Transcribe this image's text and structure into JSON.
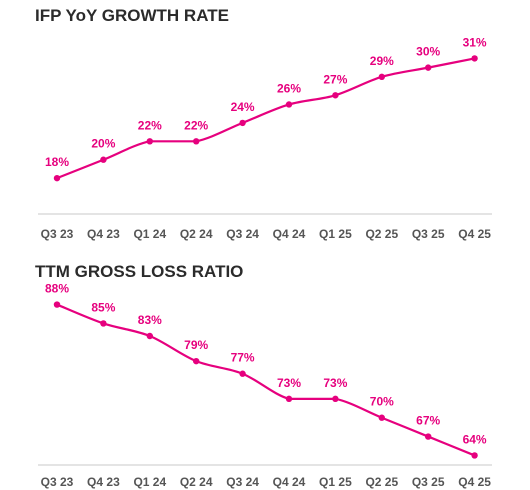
{
  "colors": {
    "series": "#e6007e",
    "axis": "#c8c8c8",
    "tick_text": "#555555",
    "title": "#2b2b2b"
  },
  "chart_data": [
    {
      "type": "line",
      "title": "IFP YoY GROWTH RATE",
      "categories": [
        "Q3 23",
        "Q4 23",
        "Q1 24",
        "Q2 24",
        "Q3 24",
        "Q4 24",
        "Q1 25",
        "Q2 25",
        "Q3 25",
        "Q4 25"
      ],
      "values": [
        18,
        20,
        22,
        22,
        24,
        26,
        27,
        29,
        30,
        31
      ],
      "labels": [
        "18%",
        "20%",
        "22%",
        "22%",
        "24%",
        "26%",
        "27%",
        "29%",
        "30%",
        "31%"
      ],
      "ylim": [
        14,
        33
      ],
      "grid": false,
      "legend": "none"
    },
    {
      "type": "line",
      "title": "TTM GROSS LOSS RATIO",
      "categories": [
        "Q3 23",
        "Q4 23",
        "Q1 24",
        "Q2 24",
        "Q3 24",
        "Q4 24",
        "Q1 25",
        "Q2 25",
        "Q3 25",
        "Q4 25"
      ],
      "values": [
        88,
        85,
        83,
        79,
        77,
        73,
        73,
        70,
        67,
        64
      ],
      "labels": [
        "88%",
        "85%",
        "83%",
        "79%",
        "77%",
        "73%",
        "73%",
        "70%",
        "67%",
        "64%"
      ],
      "ylim": [
        62,
        90
      ],
      "grid": false,
      "legend": "none"
    }
  ]
}
